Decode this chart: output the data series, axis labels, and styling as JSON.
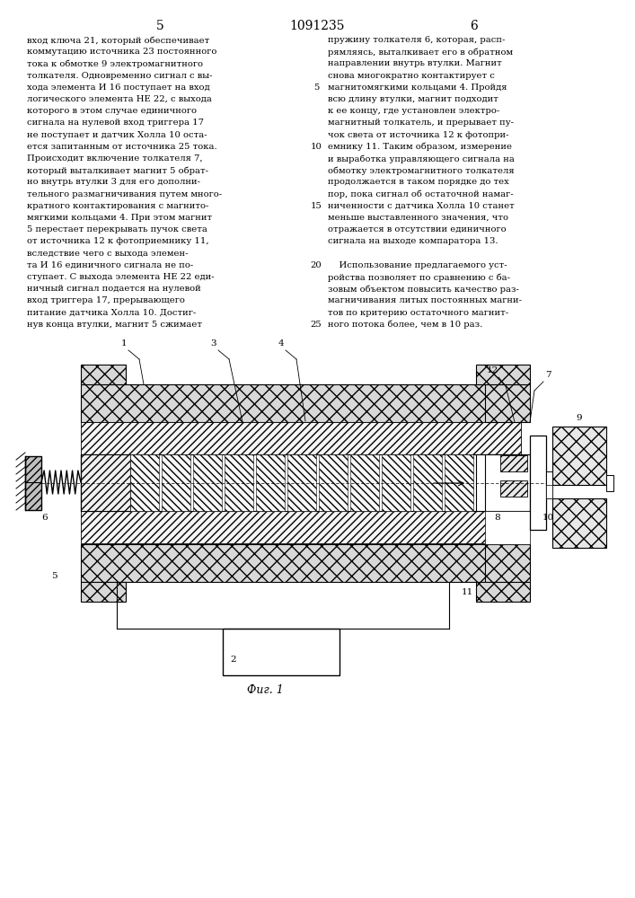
{
  "page_number": "1091235",
  "left_page": "5",
  "right_page": "6",
  "left_text": "вход ключа 21, который обеспечивает\nкоммутацию источника 23 постоянного\nтока к обмотке 9 электромагнитного\nтолкателя. Одновременно сигнал с вы-\nхода элемента И 16 поступает на вход\nлогического элемента НЕ 22, с выхода\nкоторого в этом случае единичного\nсигнала на нулевой вход триггера 17\nне поступает и датчик Холла 10 оста-\nется запитанным от источника 25 тока.\nПроисходит включение толкателя 7,\nкоторый выталкивает магнит 5 обрат-\nно внутрь втулки 3 для его дополни-\nтельного размагничивания путем много-\nкратного контактирования с магнито-\nмягкими кольцами 4. При этом магнит\n5 перестает перекрывать пучок света\nот источника 12 к фотоприемнику 11,\nвследствие чего с выхода элемен-\nта И 16 единичного сигнала не по-\nступает. С выхода элемента НЕ 22 еди-\nничный сигнал подается на нулевой\nвход триггера 17, прерывающего\nпитание датчика Холла 10. Достиг-\nнув конца втулки, магнит 5 сжимает",
  "right_text": "пружину толкателя 6, которая, расп-\nрямляясь, выталкивает его в обратном\nнаправлении внутрь втулки. Магнит\nснова многократно контактирует с\nмагнитомягкими кольцами 4. Пройдя\nвсю длину втулки, магнит подходит\nк ее концу, где установлен электро-\nмагнитный толкатель, и прерывает пу-\nчок света от источника 12 к фотопри-\nемнику 11. Таким образом, измерение\nи выработка управляющего сигнала на\nобмотку электромагнитного толкателя\nпродолжается в таком порядке до тех\nпор, пока сигнал об остаточной намаг-\nниченности с датчика Холла 10 станет\nменьше выставленного значения, что\nотражается в отсутствии единичного\nсигнала на выходе компаратора 13.",
  "right_text2": "    Использование предлагаемого уст-\nройства позволяет по сравнению с ба-\nзовым объектом повысить качество раз-\nмагничивания литых постоянных магни-\nтов по критерию остаточного магнит-\nного потока более, чем в 10 раз.",
  "fig_caption": "Фиг. 1",
  "background": "#ffffff",
  "text_color": "#000000"
}
